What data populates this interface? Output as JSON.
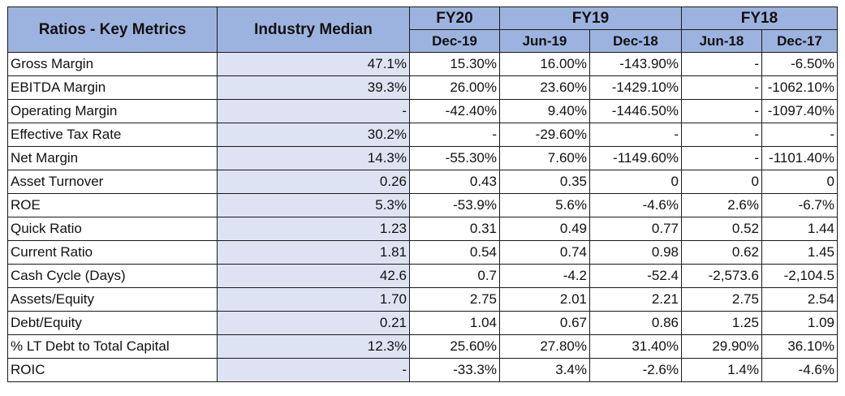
{
  "header": {
    "title": "Ratios - Key Metrics",
    "median": "Industry Median",
    "groups": [
      "FY20",
      "FY19",
      "FY18"
    ],
    "periods": [
      "Dec-19",
      "Jun-19",
      "Dec-18",
      "Jun-18",
      "Dec-17"
    ]
  },
  "rows": [
    {
      "label": "Gross Margin",
      "values": [
        "47.1%",
        "15.30%",
        "16.00%",
        "-143.90%",
        "-",
        "-6.50%"
      ]
    },
    {
      "label": "EBITDA Margin",
      "values": [
        "39.3%",
        "26.00%",
        "23.60%",
        "-1429.10%",
        "-",
        "-1062.10%"
      ]
    },
    {
      "label": "Operating Margin",
      "values": [
        "-",
        "-42.40%",
        "9.40%",
        "-1446.50%",
        "-",
        "-1097.40%"
      ]
    },
    {
      "label": "Effective Tax Rate",
      "values": [
        "30.2%",
        "-",
        "-29.60%",
        "-",
        "-",
        "-"
      ]
    },
    {
      "label": "Net Margin",
      "values": [
        "14.3%",
        "-55.30%",
        "7.60%",
        "-1149.60%",
        "-",
        "-1101.40%"
      ]
    },
    {
      "label": "Asset Turnover",
      "values": [
        "0.26",
        "0.43",
        "0.35",
        "0",
        "0",
        "0"
      ]
    },
    {
      "label": "ROE",
      "values": [
        "5.3%",
        "-53.9%",
        "5.6%",
        "-4.6%",
        "2.6%",
        "-6.7%"
      ]
    },
    {
      "label": "Quick Ratio",
      "values": [
        "1.23",
        "0.31",
        "0.49",
        "0.77",
        "0.52",
        "1.44"
      ]
    },
    {
      "label": "Current Ratio",
      "values": [
        "1.81",
        "0.54",
        "0.74",
        "0.98",
        "0.62",
        "1.45"
      ]
    },
    {
      "label": "Cash Cycle (Days)",
      "values": [
        "42.6",
        "0.7",
        "-4.2",
        "-52.4",
        "-2,573.6",
        "-2,104.5"
      ]
    },
    {
      "label": "Assets/Equity",
      "values": [
        "1.70",
        "2.75",
        "2.01",
        "2.21",
        "2.75",
        "2.54"
      ]
    },
    {
      "label": "Debt/Equity",
      "values": [
        "0.21",
        "1.04",
        "0.67",
        "0.86",
        "1.25",
        "1.09"
      ]
    },
    {
      "label": "% LT Debt to Total Capital",
      "values": [
        "12.3%",
        "25.60%",
        "27.80%",
        "31.40%",
        "29.90%",
        "36.10%"
      ]
    },
    {
      "label": "ROIC",
      "values": [
        "-",
        "-33.3%",
        "3.4%",
        "-2.6%",
        "1.4%",
        "-4.6%"
      ]
    }
  ]
}
